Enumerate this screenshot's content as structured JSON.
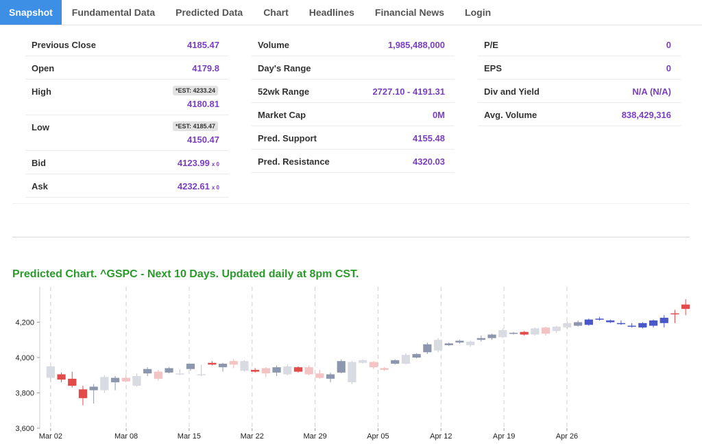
{
  "tabs": [
    "Snapshot",
    "Fundamental Data",
    "Predicted Data",
    "Chart",
    "Headlines",
    "Financial News",
    "Login"
  ],
  "active_tab": "Snapshot",
  "stats": {
    "col1": [
      {
        "label": "Previous Close",
        "value": "4185.47"
      },
      {
        "label": "Open",
        "value": "4179.8"
      },
      {
        "label": "High",
        "est": "*EST: 4233.24",
        "value": "4180.81"
      },
      {
        "label": "Low",
        "est": "*EST: 4185.47",
        "value": "4150.47"
      },
      {
        "label": "Bid",
        "value": "4123.99",
        "size": "x 0"
      },
      {
        "label": "Ask",
        "value": "4232.61",
        "size": "x 0"
      }
    ],
    "col2": [
      {
        "label": "Volume",
        "value": "1,985,488,000"
      },
      {
        "label": "Day's Range",
        "value": ""
      },
      {
        "label": "52wk Range",
        "value": "2727.10 - 4191.31"
      },
      {
        "label": "Market Cap",
        "value": "0M"
      },
      {
        "label": "Pred. Support",
        "value": "4155.48"
      },
      {
        "label": "Pred. Resistance",
        "value": "4320.03"
      }
    ],
    "col3": [
      {
        "label": "P/E",
        "value": "0"
      },
      {
        "label": "EPS",
        "value": "0"
      },
      {
        "label": "Div and Yield",
        "value": "N/A (N/A)"
      },
      {
        "label": "Avg. Volume",
        "value": "838,429,316"
      }
    ]
  },
  "chart_title": "Predicted Chart. ^GSPC - Next 10 Days. Updated daily at 8pm CST.",
  "colors": {
    "accent": "#3d8fe6",
    "value": "#7a3fc0",
    "title": "#2a9a2a",
    "up_hist": "#8c97ad",
    "down_hist": "#e34a4a",
    "pred_up": "#4a57c8",
    "pred_down": "#e34a4a"
  },
  "chart_data": {
    "type": "candlestick",
    "y_ticks": [
      "3,600",
      "3,800",
      "4,000",
      "4,200"
    ],
    "ylim": [
      3600,
      4400
    ],
    "x_ticks": [
      "Mar 02",
      "Mar 08",
      "Mar 15",
      "Mar 22",
      "Mar 29",
      "Apr 05",
      "Apr 12",
      "Apr 19",
      "Apr 26"
    ],
    "candles": [
      {
        "o": 3885,
        "h": 3955,
        "l": 3860,
        "c": 3950,
        "style": "hist-up-light"
      },
      {
        "o": 3905,
        "h": 3915,
        "l": 3860,
        "c": 3875,
        "style": "down"
      },
      {
        "o": 3880,
        "h": 3920,
        "l": 3830,
        "c": 3840,
        "style": "down"
      },
      {
        "o": 3820,
        "h": 3840,
        "l": 3730,
        "c": 3770,
        "style": "down"
      },
      {
        "o": 3815,
        "h": 3850,
        "l": 3740,
        "c": 3835,
        "style": "hist-up"
      },
      {
        "o": 3815,
        "h": 3900,
        "l": 3800,
        "c": 3890,
        "style": "hist-up-light"
      },
      {
        "o": 3860,
        "h": 3895,
        "l": 3815,
        "c": 3885,
        "style": "hist-up"
      },
      {
        "o": 3865,
        "h": 3905,
        "l": 3860,
        "c": 3885,
        "style": "down-light"
      },
      {
        "o": 3840,
        "h": 3910,
        "l": 3835,
        "c": 3895,
        "style": "hist-up-light"
      },
      {
        "o": 3910,
        "h": 3945,
        "l": 3895,
        "c": 3935,
        "style": "hist-up"
      },
      {
        "o": 3880,
        "h": 3930,
        "l": 3870,
        "c": 3920,
        "style": "down-light"
      },
      {
        "o": 3915,
        "h": 3945,
        "l": 3910,
        "c": 3940,
        "style": "hist-up"
      },
      {
        "o": 3905,
        "h": 3935,
        "l": 3900,
        "c": 3910,
        "style": "hist-up-light"
      },
      {
        "o": 3935,
        "h": 3965,
        "l": 3925,
        "c": 3965,
        "style": "hist-up"
      },
      {
        "o": 3900,
        "h": 3960,
        "l": 3895,
        "c": 3905,
        "style": "hist-up-light"
      },
      {
        "o": 3970,
        "h": 3980,
        "l": 3955,
        "c": 3960,
        "style": "down"
      },
      {
        "o": 3945,
        "h": 3970,
        "l": 3920,
        "c": 3965,
        "style": "hist-up"
      },
      {
        "o": 3980,
        "h": 3990,
        "l": 3940,
        "c": 3960,
        "style": "down-light"
      },
      {
        "o": 3925,
        "h": 3985,
        "l": 3920,
        "c": 3980,
        "style": "hist-up-light"
      },
      {
        "o": 3930,
        "h": 3940,
        "l": 3915,
        "c": 3920,
        "style": "down"
      },
      {
        "o": 3940,
        "h": 3945,
        "l": 3890,
        "c": 3910,
        "style": "down-light"
      },
      {
        "o": 3915,
        "h": 3955,
        "l": 3895,
        "c": 3945,
        "style": "hist-up"
      },
      {
        "o": 3905,
        "h": 3960,
        "l": 3900,
        "c": 3950,
        "style": "hist-up-light"
      },
      {
        "o": 3945,
        "h": 3950,
        "l": 3915,
        "c": 3920,
        "style": "down"
      },
      {
        "o": 3945,
        "h": 3955,
        "l": 3900,
        "c": 3905,
        "style": "down-light"
      },
      {
        "o": 3910,
        "h": 3930,
        "l": 3880,
        "c": 3885,
        "style": "down-light"
      },
      {
        "o": 3880,
        "h": 3915,
        "l": 3860,
        "c": 3905,
        "style": "hist-up"
      },
      {
        "o": 3915,
        "h": 3990,
        "l": 3910,
        "c": 3980,
        "style": "hist-up"
      },
      {
        "o": 3860,
        "h": 3980,
        "l": 3850,
        "c": 3975,
        "style": "hist-up-light"
      },
      {
        "o": 3970,
        "h": 3990,
        "l": 3965,
        "c": 3985,
        "style": "hist-up-light"
      },
      {
        "o": 3975,
        "h": 3980,
        "l": 3935,
        "c": 3945,
        "style": "down-light"
      },
      {
        "o": 3940,
        "h": 3945,
        "l": 3925,
        "c": 3930,
        "style": "down-light"
      },
      {
        "o": 3965,
        "h": 3990,
        "l": 3960,
        "c": 3985,
        "style": "hist-up"
      },
      {
        "o": 3965,
        "h": 4025,
        "l": 3960,
        "c": 4015,
        "style": "hist-up-light"
      },
      {
        "o": 4000,
        "h": 4025,
        "l": 3995,
        "c": 4020,
        "style": "hist-up"
      },
      {
        "o": 4030,
        "h": 4085,
        "l": 4020,
        "c": 4075,
        "style": "hist-up"
      },
      {
        "o": 4040,
        "h": 4110,
        "l": 4030,
        "c": 4100,
        "style": "hist-up-light"
      },
      {
        "o": 4070,
        "h": 4085,
        "l": 4065,
        "c": 4080,
        "style": "hist-up"
      },
      {
        "o": 4085,
        "h": 4100,
        "l": 4080,
        "c": 4095,
        "style": "hist-up"
      },
      {
        "o": 4070,
        "h": 4095,
        "l": 4060,
        "c": 4090,
        "style": "hist-up-light"
      },
      {
        "o": 4100,
        "h": 4125,
        "l": 4090,
        "c": 4110,
        "style": "hist-up"
      },
      {
        "o": 4110,
        "h": 4135,
        "l": 4100,
        "c": 4130,
        "style": "hist-up"
      },
      {
        "o": 4115,
        "h": 4165,
        "l": 4110,
        "c": 4155,
        "style": "hist-up-light"
      },
      {
        "o": 4135,
        "h": 4145,
        "l": 4130,
        "c": 4140,
        "style": "hist-up"
      },
      {
        "o": 4145,
        "h": 4150,
        "l": 4125,
        "c": 4130,
        "style": "down"
      },
      {
        "o": 4130,
        "h": 4170,
        "l": 4125,
        "c": 4165,
        "style": "hist-up-light"
      },
      {
        "o": 4170,
        "h": 4175,
        "l": 4125,
        "c": 4135,
        "style": "down-light"
      },
      {
        "o": 4150,
        "h": 4180,
        "l": 4140,
        "c": 4175,
        "style": "hist-up-light"
      },
      {
        "o": 4170,
        "h": 4205,
        "l": 4160,
        "c": 4195,
        "style": "hist-up-light"
      },
      {
        "o": 4180,
        "h": 4210,
        "l": 4175,
        "c": 4200,
        "style": "hist-up"
      },
      {
        "o": 4185,
        "h": 4220,
        "l": 4180,
        "c": 4215,
        "style": "pred-up"
      },
      {
        "o": 4215,
        "h": 4230,
        "l": 4210,
        "c": 4220,
        "style": "pred-up"
      },
      {
        "o": 4200,
        "h": 4215,
        "l": 4195,
        "c": 4210,
        "style": "pred-up"
      },
      {
        "o": 4190,
        "h": 4210,
        "l": 4185,
        "c": 4195,
        "style": "pred-up"
      },
      {
        "o": 4175,
        "h": 4195,
        "l": 4170,
        "c": 4180,
        "style": "pred-up"
      },
      {
        "o": 4170,
        "h": 4200,
        "l": 4165,
        "c": 4195,
        "style": "pred-up"
      },
      {
        "o": 4180,
        "h": 4215,
        "l": 4170,
        "c": 4210,
        "style": "pred-up"
      },
      {
        "o": 4195,
        "h": 4240,
        "l": 4170,
        "c": 4225,
        "style": "pred-up"
      },
      {
        "o": 4245,
        "h": 4270,
        "l": 4195,
        "c": 4250,
        "style": "pred-down"
      },
      {
        "o": 4300,
        "h": 4330,
        "l": 4240,
        "c": 4275,
        "style": "pred-down"
      }
    ]
  }
}
